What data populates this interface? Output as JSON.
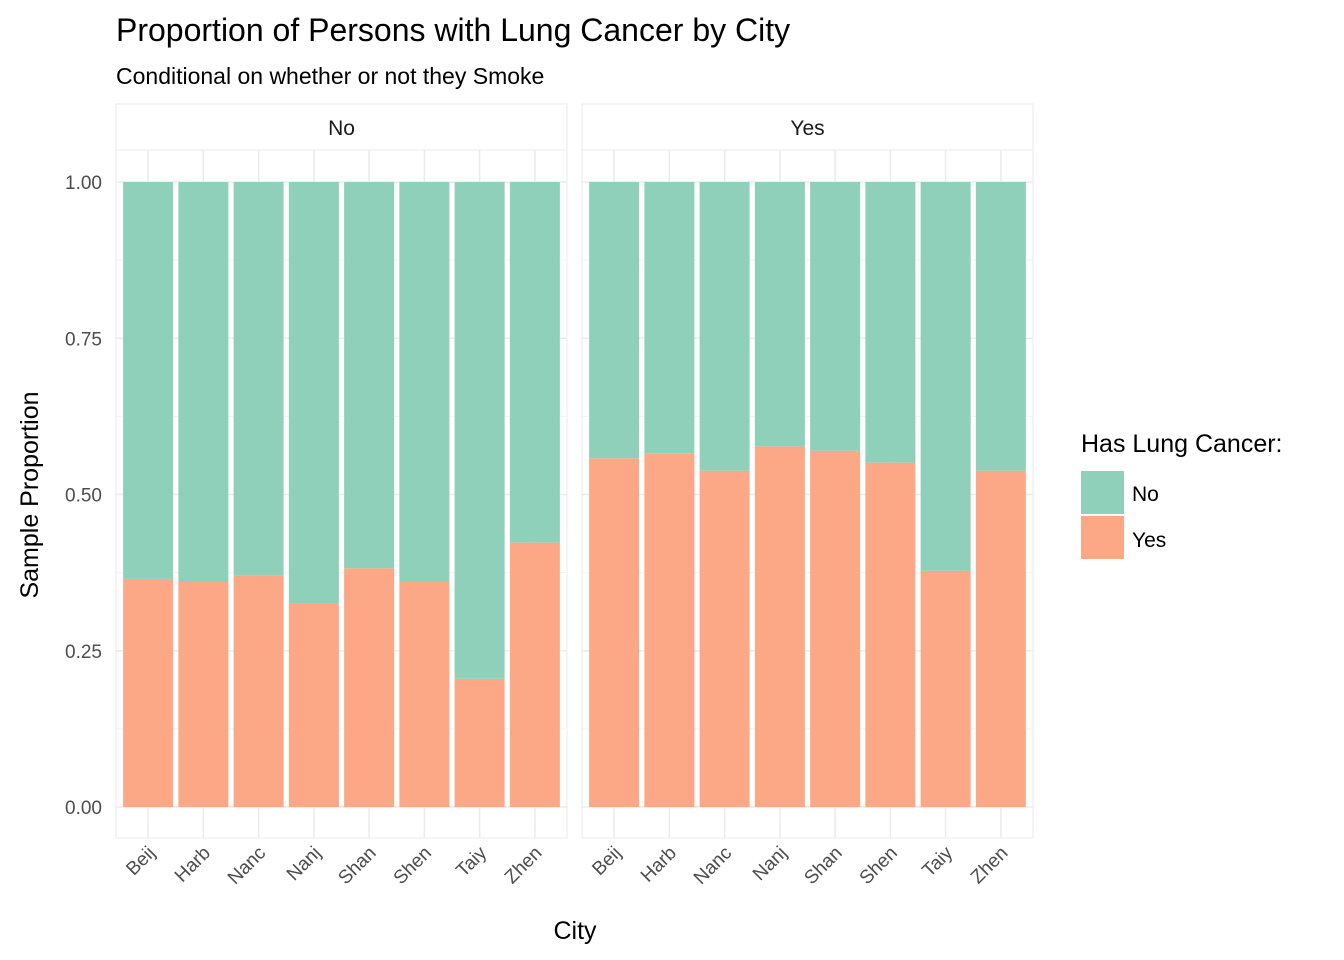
{
  "chart_data": {
    "type": "bar",
    "stacked": true,
    "title": "Proportion of Persons with Lung Cancer by City",
    "subtitle": "Conditional on whether or not they Smoke",
    "xlabel": "City",
    "ylabel": "Sample Proportion",
    "ylim": [
      0,
      1
    ],
    "y_ticks": [
      0,
      0.25,
      0.5,
      0.75,
      1
    ],
    "y_tick_labels": [
      "0.00",
      "0.25",
      "0.50",
      "0.75",
      "1.00"
    ],
    "categories": [
      "Beij",
      "Harb",
      "Nanc",
      "Nanj",
      "Shan",
      "Shen",
      "Taiy",
      "Zhen"
    ],
    "legend": {
      "title": "Has Lung Cancer:",
      "position": "right",
      "entries": [
        {
          "label": "No",
          "color": "#8ed0ba"
        },
        {
          "label": "Yes",
          "color": "#fca886"
        }
      ]
    },
    "facets": [
      {
        "label": "No",
        "series": [
          {
            "name": "Yes",
            "values": [
              0.365,
              0.36,
              0.37,
              0.325,
              0.382,
              0.36,
              0.205,
              0.423
            ]
          },
          {
            "name": "No",
            "values": [
              0.635,
              0.64,
              0.63,
              0.675,
              0.618,
              0.64,
              0.795,
              0.577
            ]
          }
        ]
      },
      {
        "label": "Yes",
        "series": [
          {
            "name": "Yes",
            "values": [
              0.558,
              0.566,
              0.538,
              0.577,
              0.57,
              0.551,
              0.378,
              0.538
            ]
          },
          {
            "name": "No",
            "values": [
              0.442,
              0.434,
              0.462,
              0.423,
              0.43,
              0.449,
              0.622,
              0.462
            ]
          }
        ]
      }
    ],
    "grid": true,
    "colors": {
      "no": "#8ed0ba",
      "yes": "#fca886",
      "grid_major": "#ebebeb",
      "grid_minor": "#f2f2f2"
    }
  }
}
